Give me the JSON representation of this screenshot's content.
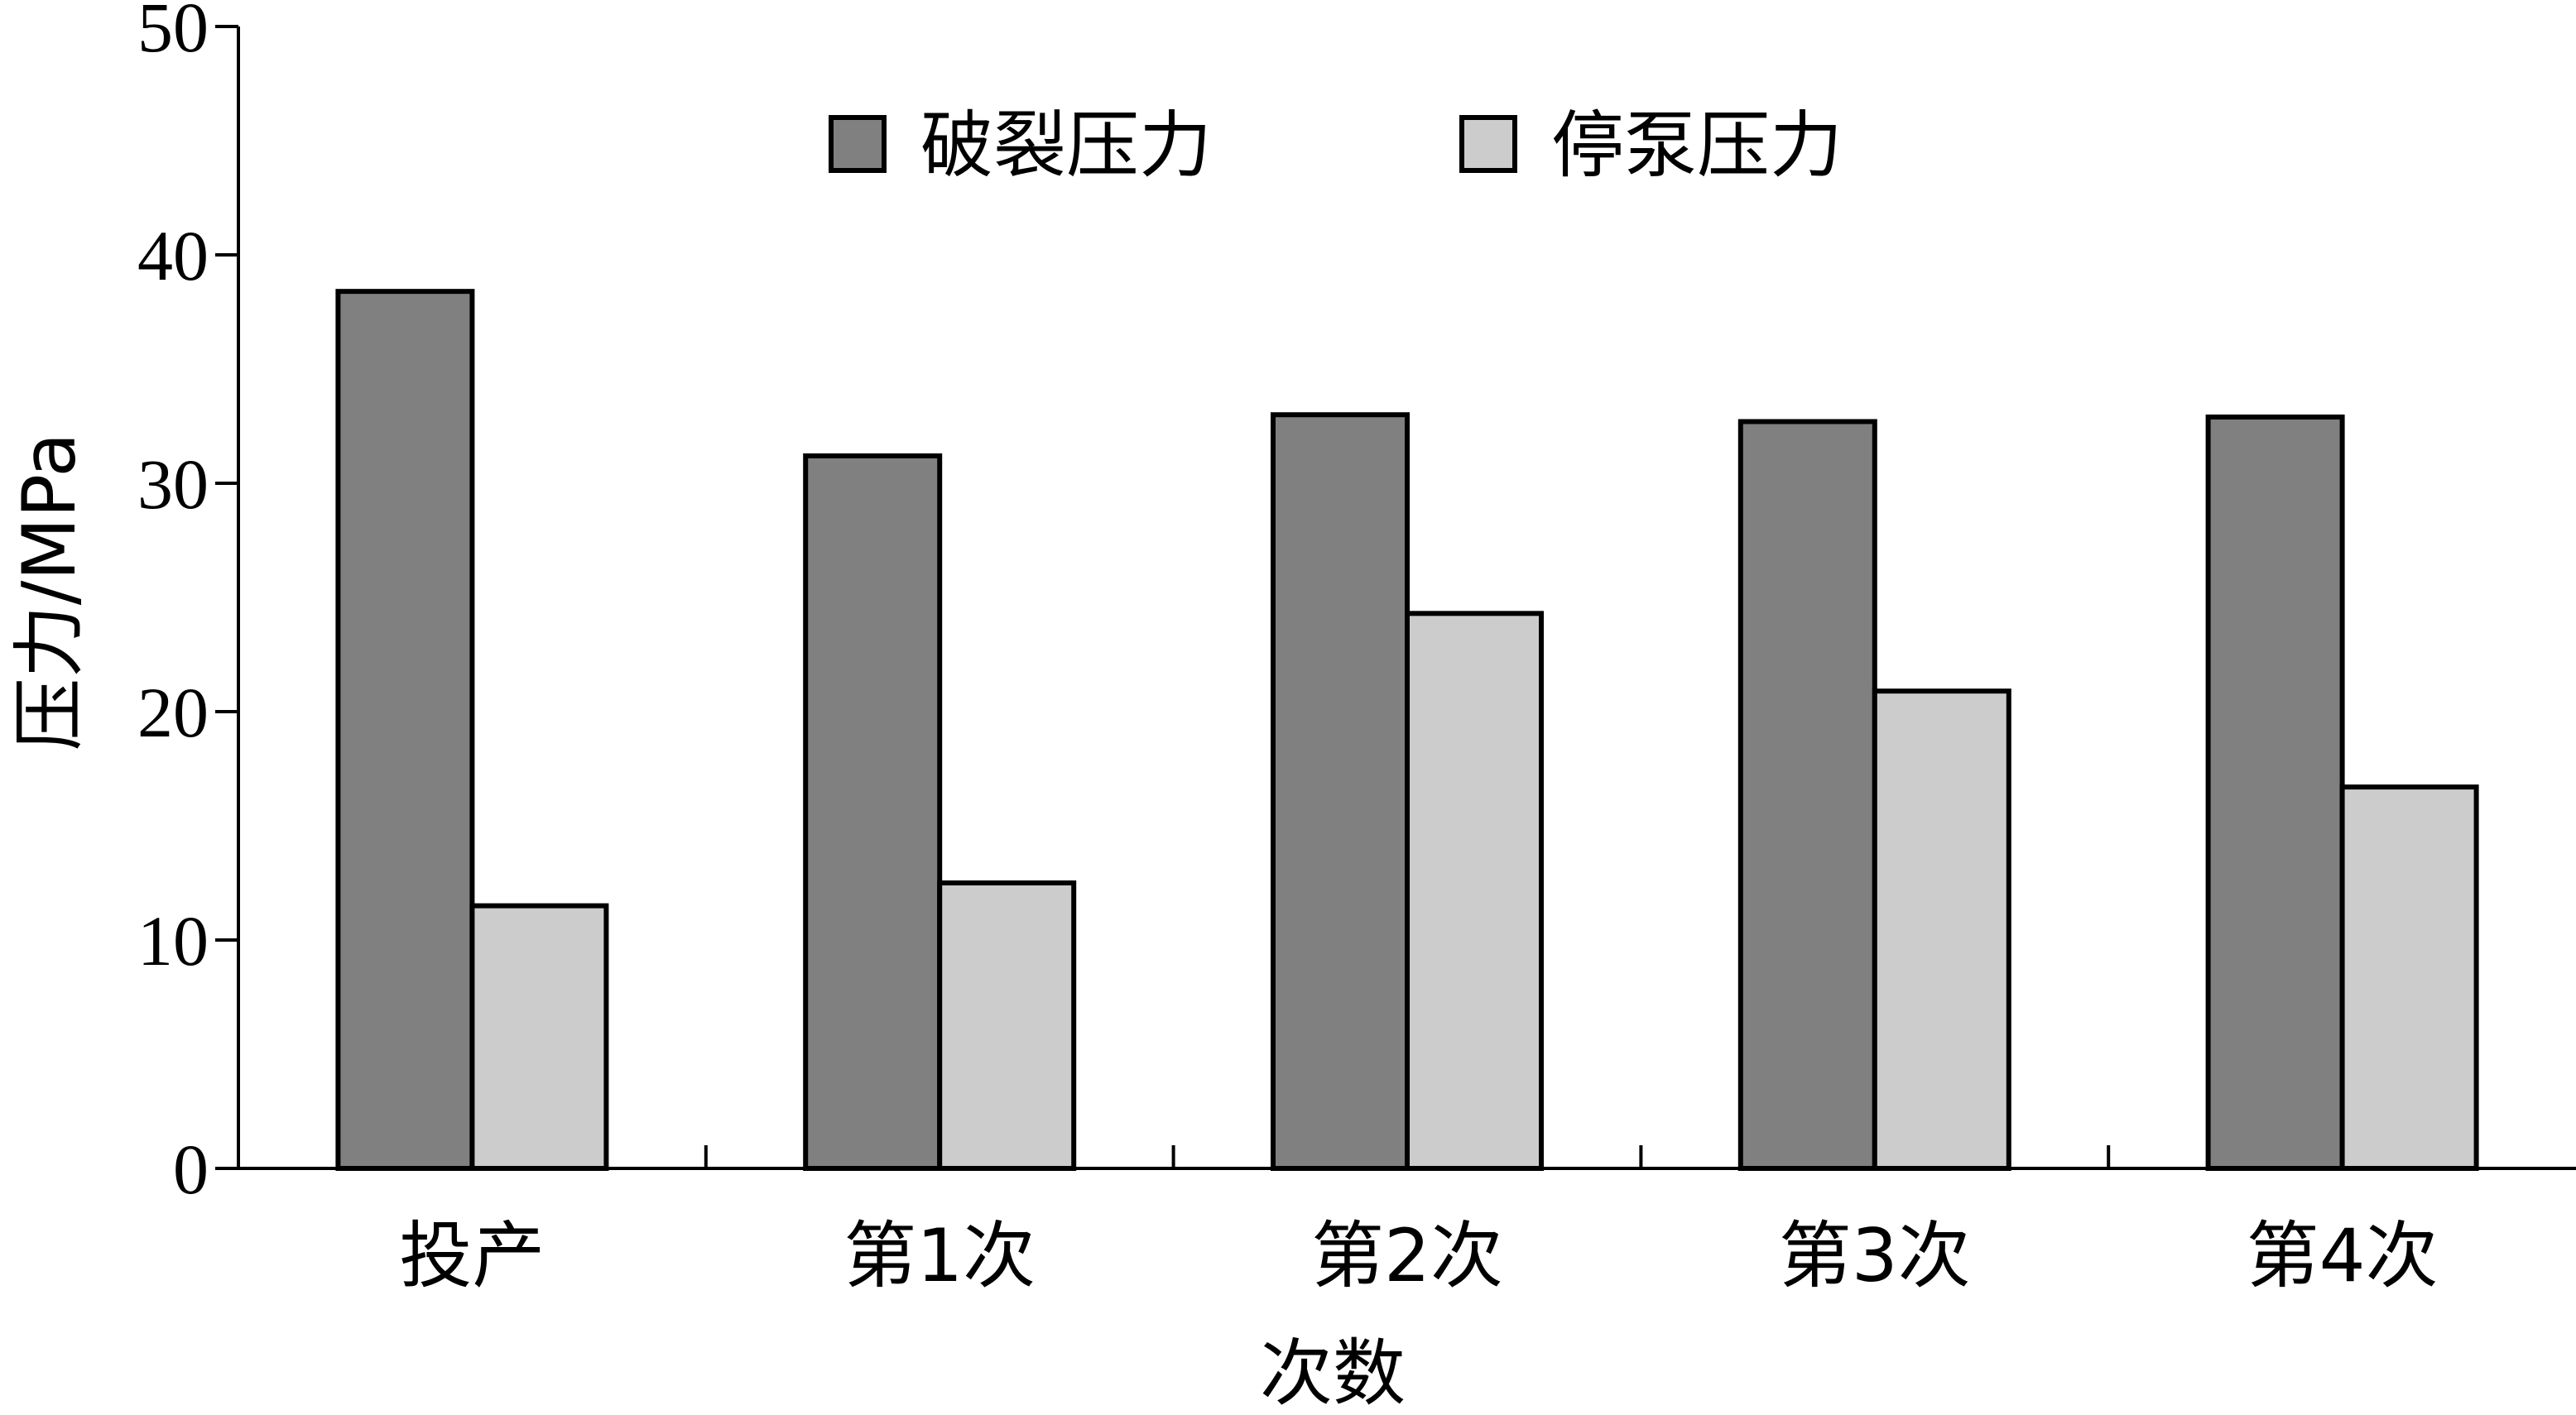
{
  "chart_data": {
    "type": "bar",
    "title": "",
    "xlabel": "次数",
    "ylabel": "压力/MPa",
    "ylim": [
      0,
      50
    ],
    "yticks": [
      0,
      10,
      20,
      30,
      40,
      50
    ],
    "categories": [
      "投产",
      "第1次",
      "第2次",
      "第3次",
      "第4次"
    ],
    "series": [
      {
        "name": "破裂压力",
        "color": "#808080",
        "values": [
          38.4,
          31.2,
          33.0,
          32.7,
          32.9
        ]
      },
      {
        "name": "停泵压力",
        "color": "#cccccc",
        "values": [
          11.5,
          12.5,
          24.3,
          20.9,
          16.7
        ]
      }
    ],
    "legend": "top-center",
    "grid": false
  }
}
